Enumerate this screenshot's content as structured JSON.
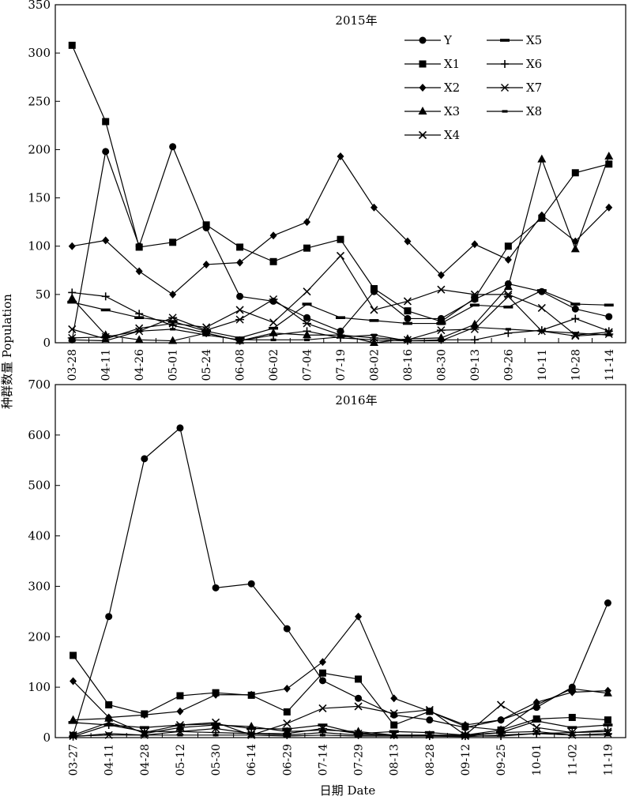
{
  "figure": {
    "ylabel": "种群数量 Population",
    "xlabel": "日期 Date"
  },
  "legend": {
    "position": "top-right of 2015 panel",
    "entries": [
      {
        "name": "Y",
        "marker": "circle"
      },
      {
        "name": "X1",
        "marker": "square"
      },
      {
        "name": "X2",
        "marker": "diamond"
      },
      {
        "name": "X3",
        "marker": "triangle"
      },
      {
        "name": "X4",
        "marker": "x"
      },
      {
        "name": "X5",
        "marker": "dash"
      },
      {
        "name": "X6",
        "marker": "plus"
      },
      {
        "name": "X7",
        "marker": "star"
      },
      {
        "name": "X8",
        "marker": "shortdash"
      }
    ]
  },
  "chart_data": [
    {
      "type": "line",
      "title": "2015年",
      "ylim": [
        0,
        350
      ],
      "yticks": [
        0,
        50,
        100,
        150,
        200,
        250,
        300,
        350
      ],
      "grid": false,
      "categories": [
        "03-28",
        "04-11",
        "04-26",
        "05-01",
        "05-24",
        "06-08",
        "06-02",
        "07-04",
        "07-19",
        "08-02",
        "08-16",
        "08-30",
        "09-13",
        "09-26",
        "10-11",
        "10-28",
        "11-14"
      ],
      "series": [
        {
          "name": "Y",
          "values": [
            3,
            198,
            100,
            203,
            119,
            48,
            43,
            26,
            12,
            53,
            25,
            25,
            45,
            61,
            53,
            35,
            27
          ]
        },
        {
          "name": "X1",
          "values": [
            308,
            229,
            99,
            104,
            122,
            99,
            84,
            98,
            107,
            56,
            33,
            22,
            46,
            100,
            129,
            176,
            185
          ]
        },
        {
          "name": "X2",
          "values": [
            100,
            106,
            74,
            50,
            81,
            83,
            111,
            125,
            193,
            140,
            105,
            70,
            102,
            86,
            132,
            105,
            140
          ]
        },
        {
          "name": "X3",
          "values": [
            46,
            8,
            3,
            2,
            10,
            2,
            10,
            8,
            8,
            0,
            4,
            5,
            19,
            58,
            190,
            97,
            193
          ]
        },
        {
          "name": "X4",
          "values": [
            14,
            4,
            15,
            20,
            16,
            34,
            21,
            53,
            90,
            34,
            43,
            55,
            50,
            50,
            36,
            8,
            11
          ]
        },
        {
          "name": "X5",
          "values": [
            42,
            34,
            26,
            22,
            12,
            5,
            15,
            40,
            26,
            23,
            20,
            20,
            39,
            37,
            54,
            40,
            39
          ]
        },
        {
          "name": "X6",
          "values": [
            52,
            48,
            30,
            18,
            10,
            2,
            8,
            12,
            5,
            3,
            2,
            3,
            3,
            10,
            13,
            25,
            12
          ]
        },
        {
          "name": "X7",
          "values": [
            5,
            6,
            12,
            26,
            13,
            24,
            45,
            20,
            8,
            5,
            3,
            13,
            14,
            48,
            12,
            7,
            9
          ]
        },
        {
          "name": "X8",
          "values": [
            3,
            2,
            12,
            14,
            8,
            3,
            3,
            3,
            6,
            8,
            2,
            2,
            16,
            14,
            12,
            10,
            8
          ]
        }
      ]
    },
    {
      "type": "line",
      "title": "2016年",
      "ylim": [
        0,
        700
      ],
      "yticks": [
        0,
        100,
        200,
        300,
        400,
        500,
        600,
        700
      ],
      "grid": false,
      "categories": [
        "03-27",
        "04-11",
        "04-28",
        "05-12",
        "05-30",
        "06-14",
        "06-29",
        "07-14",
        "07-29",
        "08-13",
        "08-28",
        "09-12",
        "09-25",
        "10-01",
        "11-02",
        "11-19"
      ],
      "series": [
        {
          "name": "Y",
          "values": [
            5,
            240,
            553,
            614,
            297,
            305,
            216,
            113,
            78,
            45,
            35,
            20,
            35,
            60,
            100,
            267
          ]
        },
        {
          "name": "X1",
          "values": [
            163,
            65,
            47,
            83,
            89,
            84,
            51,
            128,
            116,
            25,
            52,
            22,
            15,
            37,
            40,
            35
          ]
        },
        {
          "name": "X2",
          "values": [
            112,
            40,
            45,
            52,
            85,
            85,
            97,
            150,
            240,
            78,
            52,
            25,
            35,
            70,
            90,
            93
          ]
        },
        {
          "name": "X3",
          "values": [
            35,
            38,
            8,
            20,
            25,
            22,
            12,
            15,
            12,
            5,
            5,
            5,
            15,
            65,
            97,
            88
          ]
        },
        {
          "name": "X4",
          "values": [
            5,
            30,
            10,
            25,
            30,
            5,
            28,
            58,
            62,
            48,
            55,
            5,
            65,
            20,
            10,
            12
          ]
        },
        {
          "name": "X5",
          "values": [
            30,
            25,
            20,
            25,
            27,
            18,
            17,
            25,
            8,
            12,
            10,
            5,
            10,
            33,
            20,
            25
          ]
        },
        {
          "name": "X6",
          "values": [
            2,
            25,
            12,
            12,
            10,
            8,
            5,
            10,
            5,
            5,
            3,
            3,
            3,
            8,
            10,
            15
          ]
        },
        {
          "name": "X7",
          "values": [
            3,
            5,
            5,
            12,
            18,
            8,
            8,
            18,
            8,
            5,
            5,
            3,
            10,
            12,
            5,
            8
          ]
        },
        {
          "name": "X8",
          "values": [
            2,
            8,
            5,
            5,
            5,
            5,
            3,
            5,
            3,
            3,
            3,
            2,
            5,
            8,
            5,
            5
          ]
        }
      ]
    }
  ]
}
